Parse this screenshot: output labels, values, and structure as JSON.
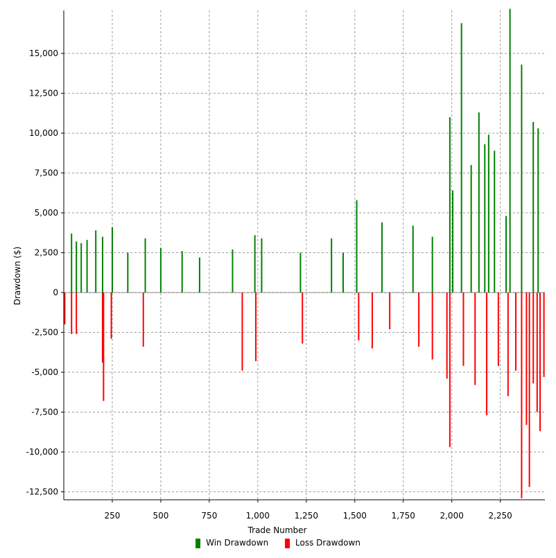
{
  "chart_data": {
    "type": "bar",
    "title": "",
    "xlabel": "Trade Number",
    "ylabel": "Drawdown ($)",
    "xlim": [
      0,
      2480
    ],
    "ylim": [
      -13000,
      17700
    ],
    "x_ticks": [
      250,
      500,
      750,
      1000,
      1250,
      1500,
      1750,
      2000,
      2250
    ],
    "x_tick_labels": [
      "250",
      "500",
      "750",
      "1,000",
      "1,250",
      "1,500",
      "1,750",
      "2,000",
      "2,250"
    ],
    "y_ticks": [
      15000,
      12500,
      10000,
      7500,
      5000,
      2500,
      0,
      -2500,
      -5000,
      -7500,
      -10000,
      -12500
    ],
    "y_tick_labels": [
      "15,000",
      "12,500",
      "10,000",
      "7,500",
      "5,000",
      "2,500",
      "0",
      "-2,500",
      "-5,000",
      "-7,500",
      "-10,000",
      "-12,500"
    ],
    "grid": true,
    "legend_position": "bottom",
    "series": [
      {
        "name": "Win Drawdown",
        "color": "#008000",
        "x": [
          40,
          65,
          90,
          120,
          165,
          200,
          250,
          330,
          420,
          500,
          610,
          700,
          870,
          985,
          1020,
          1220,
          1380,
          1440,
          1510,
          1640,
          1800,
          1900,
          1990,
          2005,
          2050,
          2100,
          2140,
          2170,
          2190,
          2220,
          2280,
          2300,
          2360,
          2420,
          2445
        ],
        "values": [
          3700,
          3200,
          3100,
          3300,
          3900,
          3500,
          4100,
          2500,
          3400,
          2800,
          2600,
          2200,
          2700,
          3600,
          3400,
          2500,
          3400,
          2500,
          5800,
          4400,
          4200,
          3500,
          11000,
          6400,
          16900,
          8000,
          11300,
          9300,
          9900,
          8900,
          4800,
          17800,
          14300,
          10700,
          10300
        ]
      },
      {
        "name": "Loss Drawdown",
        "color": "#ff0000",
        "x": [
          5,
          40,
          65,
          200,
          205,
          245,
          410,
          920,
          990,
          1230,
          1520,
          1590,
          1680,
          1830,
          1900,
          1975,
          1990,
          2060,
          2120,
          2180,
          2240,
          2290,
          2330,
          2360,
          2385,
          2400,
          2420,
          2440,
          2455,
          2475
        ],
        "values": [
          -2000,
          -2600,
          -2600,
          -4400,
          -6800,
          -2900,
          -3400,
          -4900,
          -4300,
          -3200,
          -3000,
          -3500,
          -2300,
          -3400,
          -4200,
          -5400,
          -9700,
          -4600,
          -5800,
          -7700,
          -4600,
          -6500,
          -4900,
          -12900,
          -8300,
          -12200,
          -5700,
          -7500,
          -8700,
          -5300
        ]
      }
    ]
  }
}
